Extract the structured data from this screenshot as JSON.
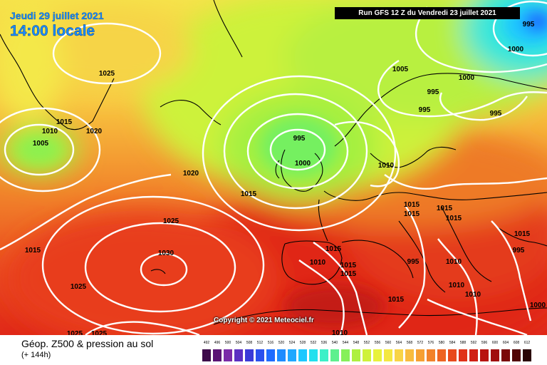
{
  "header": {
    "date": "Jeudi 29 juillet 2021",
    "time": "14:00 locale",
    "run": "Run GFS 12 Z du Vendredi 23 juillet 2021"
  },
  "footer": {
    "caption": "Géop. Z500 & pression au sol",
    "subcaption": "(+ 144h)",
    "copyright": "Copyright © 2021 Meteociel.fr"
  },
  "legend": {
    "values": [
      "492",
      "496",
      "500",
      "504",
      "508",
      "512",
      "516",
      "520",
      "524",
      "528",
      "532",
      "536",
      "540",
      "544",
      "548",
      "552",
      "556",
      "560",
      "564",
      "568",
      "572",
      "576",
      "580",
      "584",
      "588",
      "592",
      "596",
      "600",
      "604",
      "608",
      "612"
    ],
    "colors": [
      "#3d0a4a",
      "#5a1474",
      "#7a2aa8",
      "#5b2fc2",
      "#3a3ad8",
      "#2a50ee",
      "#1f6cff",
      "#1e8cff",
      "#20a8ff",
      "#1ec8ff",
      "#22e0ee",
      "#3cf0c8",
      "#5ef08e",
      "#86f05a",
      "#aef040",
      "#cff23a",
      "#e8f23c",
      "#f4e842",
      "#f8d446",
      "#f8bc3e",
      "#f6a032",
      "#f2822a",
      "#ee6422",
      "#e84a1c",
      "#e03218",
      "#d02014",
      "#b81410",
      "#a00c0c",
      "#7a0808",
      "#520606",
      "#2a0404"
    ]
  },
  "isobars": [
    "995",
    "1000",
    "1005",
    "995",
    "995",
    "995",
    "1025",
    "1015",
    "1010",
    "1020",
    "1005",
    "995",
    "1000",
    "1020",
    "1015",
    "1010",
    "1025",
    "1015",
    "1015",
    "1015",
    "1015",
    "1030",
    "1015",
    "1010",
    "1015",
    "1015",
    "1015",
    "1025",
    "1010",
    "1010",
    "1010",
    "1015",
    "1025",
    "1025",
    "1010",
    "1000",
    "1015",
    "1000",
    "995",
    "995"
  ]
}
